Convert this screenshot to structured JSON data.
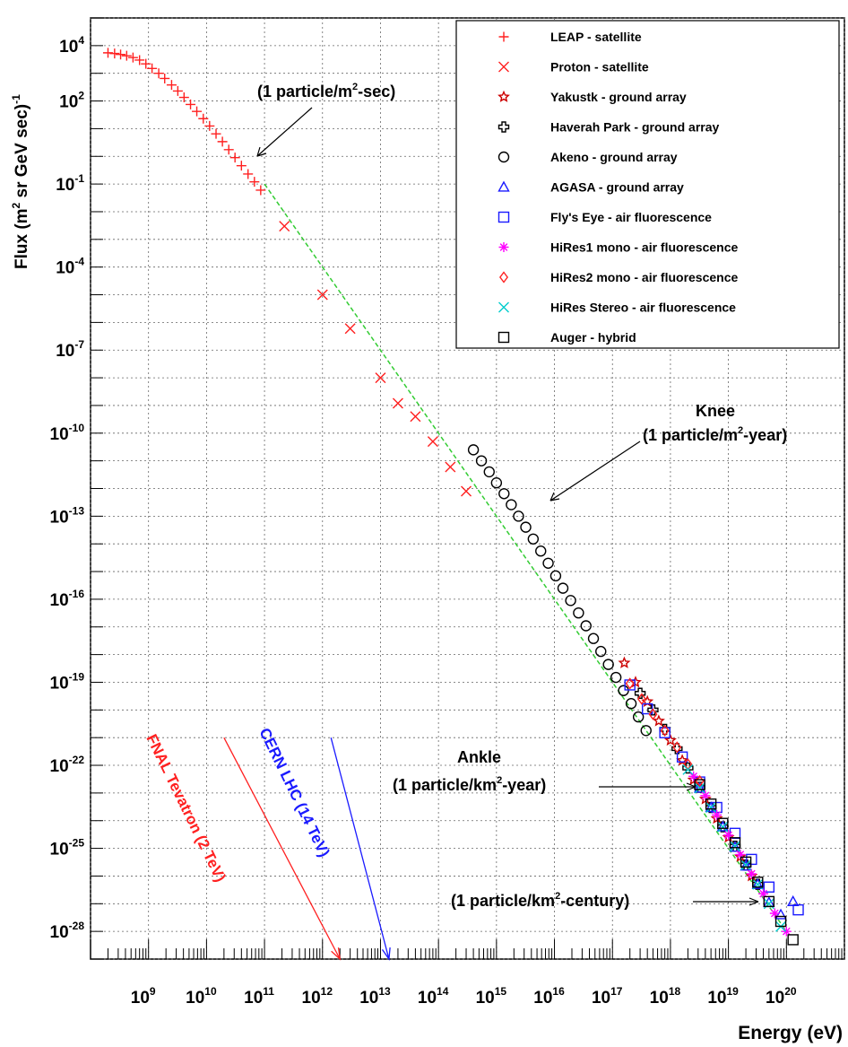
{
  "chart_data": {
    "type": "scatter",
    "xlabel": "Energy (eV)",
    "ylabel_main": "Flux (m",
    "ylabel_sup1": "2",
    "ylabel_mid": " sr GeV sec)",
    "ylabel_sup2": "-1",
    "x_scale": "log",
    "y_scale": "log",
    "xlim": [
      100000000,
      1000000000000000000000
    ],
    "ylim": [
      1e-29,
      100000
    ],
    "grid": true,
    "legend_position": "top-right",
    "x_ticks": [
      {
        "base": "10",
        "exp": "9",
        "value": 1000000000.0
      },
      {
        "base": "10",
        "exp": "10",
        "value": 10000000000.0
      },
      {
        "base": "10",
        "exp": "11",
        "value": 100000000000.0
      },
      {
        "base": "10",
        "exp": "12",
        "value": 1000000000000.0
      },
      {
        "base": "10",
        "exp": "13",
        "value": 10000000000000.0
      },
      {
        "base": "10",
        "exp": "14",
        "value": 100000000000000.0
      },
      {
        "base": "10",
        "exp": "15",
        "value": 1000000000000000.0
      },
      {
        "base": "10",
        "exp": "16",
        "value": 1e+16
      },
      {
        "base": "10",
        "exp": "17",
        "value": 1e+17
      },
      {
        "base": "10",
        "exp": "18",
        "value": 1e+18
      },
      {
        "base": "10",
        "exp": "19",
        "value": 1e+19
      },
      {
        "base": "10",
        "exp": "20",
        "value": 1e+20
      }
    ],
    "y_ticks": [
      {
        "base": "10",
        "exp": "4",
        "value": 10000.0
      },
      {
        "base": "10",
        "exp": "2",
        "value": 100.0
      },
      {
        "base": "10",
        "exp": "-1",
        "value": 0.1
      },
      {
        "base": "10",
        "exp": "-4",
        "value": 0.0001
      },
      {
        "base": "10",
        "exp": "-7",
        "value": 1e-07
      },
      {
        "base": "10",
        "exp": "-10",
        "value": 1e-10
      },
      {
        "base": "10",
        "exp": "-13",
        "value": 1e-13
      },
      {
        "base": "10",
        "exp": "-16",
        "value": 1e-16
      },
      {
        "base": "10",
        "exp": "-19",
        "value": 1e-19
      },
      {
        "base": "10",
        "exp": "-22",
        "value": 1e-22
      },
      {
        "base": "10",
        "exp": "-25",
        "value": 1e-25
      },
      {
        "base": "10",
        "exp": "-28",
        "value": 1e-28
      }
    ],
    "series": [
      {
        "name": "LEAP - satellite",
        "marker": "plus",
        "color": "#ff2020",
        "points": [
          [
            200000000.0,
            5500
          ],
          [
            260000000.0,
            5200
          ],
          [
            330000000.0,
            4800
          ],
          [
            420000000.0,
            4300
          ],
          [
            540000000.0,
            3700
          ],
          [
            700000000.0,
            3000
          ],
          [
            900000000.0,
            2200
          ],
          [
            1150000000.0,
            1500
          ],
          [
            1500000000.0,
            1000
          ],
          [
            1900000000.0,
            650
          ],
          [
            2500000000.0,
            380
          ],
          [
            3200000000.0,
            230
          ],
          [
            4100000000.0,
            135
          ],
          [
            5300000000.0,
            75
          ],
          [
            6800000000.0,
            42
          ],
          [
            8800000000.0,
            23
          ],
          [
            11300000000.0,
            12.5
          ],
          [
            14600000000.0,
            6.5
          ],
          [
            18800000000.0,
            3.4
          ],
          [
            24200000000.0,
            1.75
          ],
          [
            31000000000.0,
            0.9
          ],
          [
            40000000000.0,
            0.46
          ],
          [
            52000000000.0,
            0.23
          ],
          [
            67000000000.0,
            0.12
          ],
          [
            86000000000.0,
            0.06
          ]
        ]
      },
      {
        "name": "Proton - satellite",
        "marker": "x",
        "color": "#ff2020",
        "points": [
          [
            220000000000.0,
            0.003
          ],
          [
            1000000000000.0,
            1e-05
          ],
          [
            3000000000000.0,
            6e-07
          ],
          [
            10000000000000.0,
            1e-08
          ],
          [
            20000000000000.0,
            1.2e-09
          ],
          [
            40000000000000.0,
            4e-10
          ],
          [
            80000000000000.0,
            5e-11
          ],
          [
            160000000000000.0,
            6e-12
          ],
          [
            300000000000000.0,
            8e-13
          ]
        ]
      },
      {
        "name": "Yakustk - ground array",
        "marker": "star",
        "color": "#cc0000",
        "points": [
          [
            1.6e+17,
            5e-19
          ],
          [
            2.5e+17,
            1e-19
          ],
          [
            4e+17,
            2e-20
          ],
          [
            6.3e+17,
            4e-21
          ],
          [
            1e+18,
            8e-22
          ],
          [
            1.6e+18,
            1.5e-22
          ],
          [
            2.5e+18,
            3e-23
          ],
          [
            4e+18,
            6e-24
          ],
          [
            6.3e+18,
            1.2e-24
          ],
          [
            1e+19,
            2.5e-25
          ],
          [
            1.6e+19,
            5e-26
          ],
          [
            2.5e+19,
            1e-26
          ]
        ]
      },
      {
        "name": "Haverah Park - ground array",
        "marker": "cross",
        "color": "#000000",
        "points": [
          [
            3e+17,
            4e-20
          ],
          [
            5e+17,
            1e-20
          ],
          [
            8e+17,
            2e-21
          ],
          [
            1.3e+18,
            4e-22
          ],
          [
            2e+18,
            8e-23
          ],
          [
            3.2e+18,
            1.6e-23
          ],
          [
            5e+18,
            3e-24
          ],
          [
            8e+18,
            6e-25
          ],
          [
            1.3e+19,
            1.2e-25
          ],
          [
            2e+19,
            2.5e-26
          ],
          [
            3.2e+19,
            5e-27
          ]
        ]
      },
      {
        "name": "Akeno - ground array",
        "marker": "circle",
        "color": "#000000",
        "points": [
          [
            400000000000000.0,
            2.5e-11
          ],
          [
            550000000000000.0,
            1e-11
          ],
          [
            750000000000000.0,
            4e-12
          ],
          [
            1000000000000000.0,
            1.6e-12
          ],
          [
            1350000000000000.0,
            6.5e-13
          ],
          [
            1800000000000000.0,
            2.6e-13
          ],
          [
            2400000000000000.0,
            1e-13
          ],
          [
            3200000000000000.0,
            4e-14
          ],
          [
            4300000000000000.0,
            1.5e-14
          ],
          [
            5800000000000000.0,
            5.5e-15
          ],
          [
            7800000000000000.0,
            2e-15
          ],
          [
            1.05e+16,
            7e-16
          ],
          [
            1.4e+16,
            2.5e-16
          ],
          [
            1.9e+16,
            9e-17
          ],
          [
            2.6e+16,
            3.2e-17
          ],
          [
            3.5e+16,
            1.1e-17
          ],
          [
            4.7e+16,
            3.8e-18
          ],
          [
            6.3e+16,
            1.3e-18
          ],
          [
            8.5e+16,
            4.4e-19
          ],
          [
            1.15e+17,
            1.5e-19
          ],
          [
            1.55e+17,
            5e-20
          ],
          [
            2.1e+17,
            1.7e-20
          ],
          [
            2.8e+17,
            5.6e-21
          ],
          [
            3.8e+17,
            1.8e-21
          ]
        ]
      },
      {
        "name": "AGASA - ground array",
        "marker": "triangle",
        "color": "#1a1aff",
        "points": [
          [
            3.2e+18,
            1.5e-23
          ],
          [
            5e+18,
            3e-24
          ],
          [
            8e+18,
            6e-25
          ],
          [
            1.3e+19,
            1.1e-25
          ],
          [
            2e+19,
            2.3e-26
          ],
          [
            3.2e+19,
            5e-27
          ],
          [
            5e+19,
            1.1e-27
          ],
          [
            8e+19,
            4e-28
          ],
          [
            1.3e+20,
            1.2e-27
          ]
        ]
      },
      {
        "name": "Fly's Eye - air fluorescence",
        "marker": "square",
        "color": "#1a1aff",
        "points": [
          [
            2e+17,
            8e-20
          ],
          [
            4e+17,
            1.1e-20
          ],
          [
            8e+17,
            1.5e-21
          ],
          [
            1.6e+18,
            2e-22
          ],
          [
            3.2e+18,
            2.5e-23
          ],
          [
            6.3e+18,
            3e-24
          ],
          [
            1.3e+19,
            3.5e-25
          ],
          [
            2.5e+19,
            4e-26
          ],
          [
            5e+19,
            4e-27
          ],
          [
            1.6e+20,
            6e-28
          ]
        ]
      },
      {
        "name": "HiRes1 mono - air fluorescence",
        "marker": "asterisk",
        "color": "#ff00ff",
        "points": [
          [
            2.5e+18,
            4e-23
          ],
          [
            4e+18,
            8e-24
          ],
          [
            6.3e+18,
            1.6e-24
          ],
          [
            1e+19,
            3e-25
          ],
          [
            1.6e+19,
            6e-26
          ],
          [
            2.5e+19,
            1.2e-26
          ],
          [
            4e+19,
            2.3e-27
          ],
          [
            6.3e+19,
            4.5e-28
          ],
          [
            1e+20,
            1e-28
          ]
        ]
      },
      {
        "name": "HiRes2 mono - air fluorescence",
        "marker": "diamond",
        "color": "#ff2020",
        "points": [
          [
            2e+17,
            9e-20
          ],
          [
            3.2e+17,
            2.5e-20
          ],
          [
            5e+17,
            7e-21
          ],
          [
            8e+17,
            1.8e-21
          ],
          [
            1.3e+18,
            4.5e-22
          ],
          [
            2e+18,
            1.1e-22
          ],
          [
            3.2e+18,
            2.7e-23
          ]
        ]
      },
      {
        "name": "HiRes Stereo - air fluorescence",
        "marker": "xcyan",
        "color": "#00cccc",
        "points": [
          [
            2e+18,
            7e-23
          ],
          [
            3.2e+18,
            1.5e-23
          ],
          [
            5e+18,
            3e-24
          ],
          [
            8e+18,
            6e-25
          ],
          [
            1.3e+19,
            1.2e-25
          ],
          [
            2e+19,
            2.5e-26
          ],
          [
            3.2e+19,
            5e-27
          ],
          [
            5e+19,
            1e-27
          ],
          [
            8e+19,
            1.5e-28
          ]
        ]
      },
      {
        "name": "Auger - hybrid",
        "marker": "square",
        "color": "#000000",
        "points": [
          [
            3.2e+18,
            2e-23
          ],
          [
            5e+18,
            4e-24
          ],
          [
            8e+18,
            8e-25
          ],
          [
            1.3e+19,
            1.6e-25
          ],
          [
            2e+19,
            3.2e-26
          ],
          [
            3.2e+19,
            6e-27
          ],
          [
            5e+19,
            1.2e-27
          ],
          [
            8e+19,
            2.3e-28
          ],
          [
            1.3e+20,
            5e-29
          ]
        ]
      }
    ],
    "fit_line": {
      "color": "#33cc33",
      "points": [
        [
          100000000000.0,
          0.1
        ],
        [
          1e+20,
          1e-28
        ]
      ]
    },
    "annotations": {
      "one_per_m2_sec": {
        "pre": "(1 particle/m",
        "sup": "2",
        "post": "-sec)"
      },
      "knee_title": "Knee",
      "knee": {
        "pre": "(1 particle/m",
        "sup": "2",
        "post": "-year)"
      },
      "ankle_title": "Ankle",
      "ankle": {
        "pre": "(1 particle/km",
        "sup": "2",
        "post": "-year)"
      },
      "century": {
        "pre": "(1 particle/km",
        "sup": "2",
        "post": "-century)"
      },
      "fnal": "FNAL Tevatron (2 TeV)",
      "cern": "CERN LHC (14 TeV)"
    },
    "arrows": {
      "fnal": {
        "from": [
          20000000000.0,
          1e-21
        ],
        "to": [
          2000000000000.0,
          1e-29
        ],
        "color": "#ff2020"
      },
      "cern": {
        "from": [
          1400000000000.0,
          1e-21
        ],
        "to": [
          14000000000000.0,
          1e-29
        ],
        "color": "#1a1aff"
      }
    }
  }
}
